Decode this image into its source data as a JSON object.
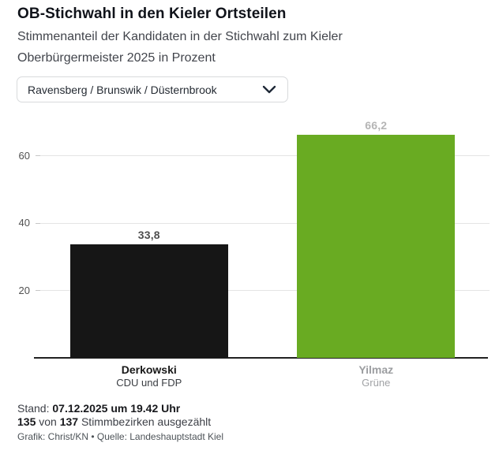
{
  "header": {
    "title": "OB-Stichwahl in den Kieler Ortsteilen",
    "subtitle_line1": "Stimmenanteil der Kandidaten in der Stichwahl zum Kieler",
    "subtitle_line2": "Oberbürgermeister 2025 in Prozent"
  },
  "filter": {
    "selected": "Ravensberg / Brunswik / Düsternbrook",
    "chevron_icon": "chevron-down",
    "chevron_color": "#1f2937"
  },
  "chart_data": {
    "type": "bar",
    "title": "OB-Stichwahl in den Kieler Ortsteilen",
    "subtitle": "Stimmenanteil der Kandidaten in der Stichwahl zum Kieler Oberbürgermeister 2025 in Prozent",
    "categories": [
      "Derkowski",
      "Yilmaz"
    ],
    "category_sublabels": [
      "CDU und FDP",
      "Grüne"
    ],
    "values": [
      33.8,
      66.2
    ],
    "value_labels": [
      "33,8",
      "66,2"
    ],
    "bar_colors": [
      "#161616",
      "#69ab22"
    ],
    "value_label_colors": [
      "#4f4f4f",
      "#b5b5b5"
    ],
    "category_name_colors": [
      "#181818",
      "#9c9ea1"
    ],
    "category_sub_colors": [
      "#3a3d42",
      "#a0a2a5"
    ],
    "yticks": [
      20,
      40,
      60
    ],
    "ylim": [
      0,
      70
    ],
    "xlabel": "",
    "ylabel": "",
    "unit": "Prozent",
    "grid": true,
    "legend": "none",
    "gridline_color": "#e4e4e4",
    "baseline_color": "#212121"
  },
  "footer": {
    "stand_label": "Stand: ",
    "stand_value": "07.12.2025 um 19.42 Uhr",
    "counted_bold1": "135",
    "counted_mid": " von ",
    "counted_bold2": "137",
    "counted_rest": " Stimmbezirken ausgezählt",
    "credit": "Grafik: Christ/KN • Quelle: Landeshauptstadt Kiel"
  }
}
